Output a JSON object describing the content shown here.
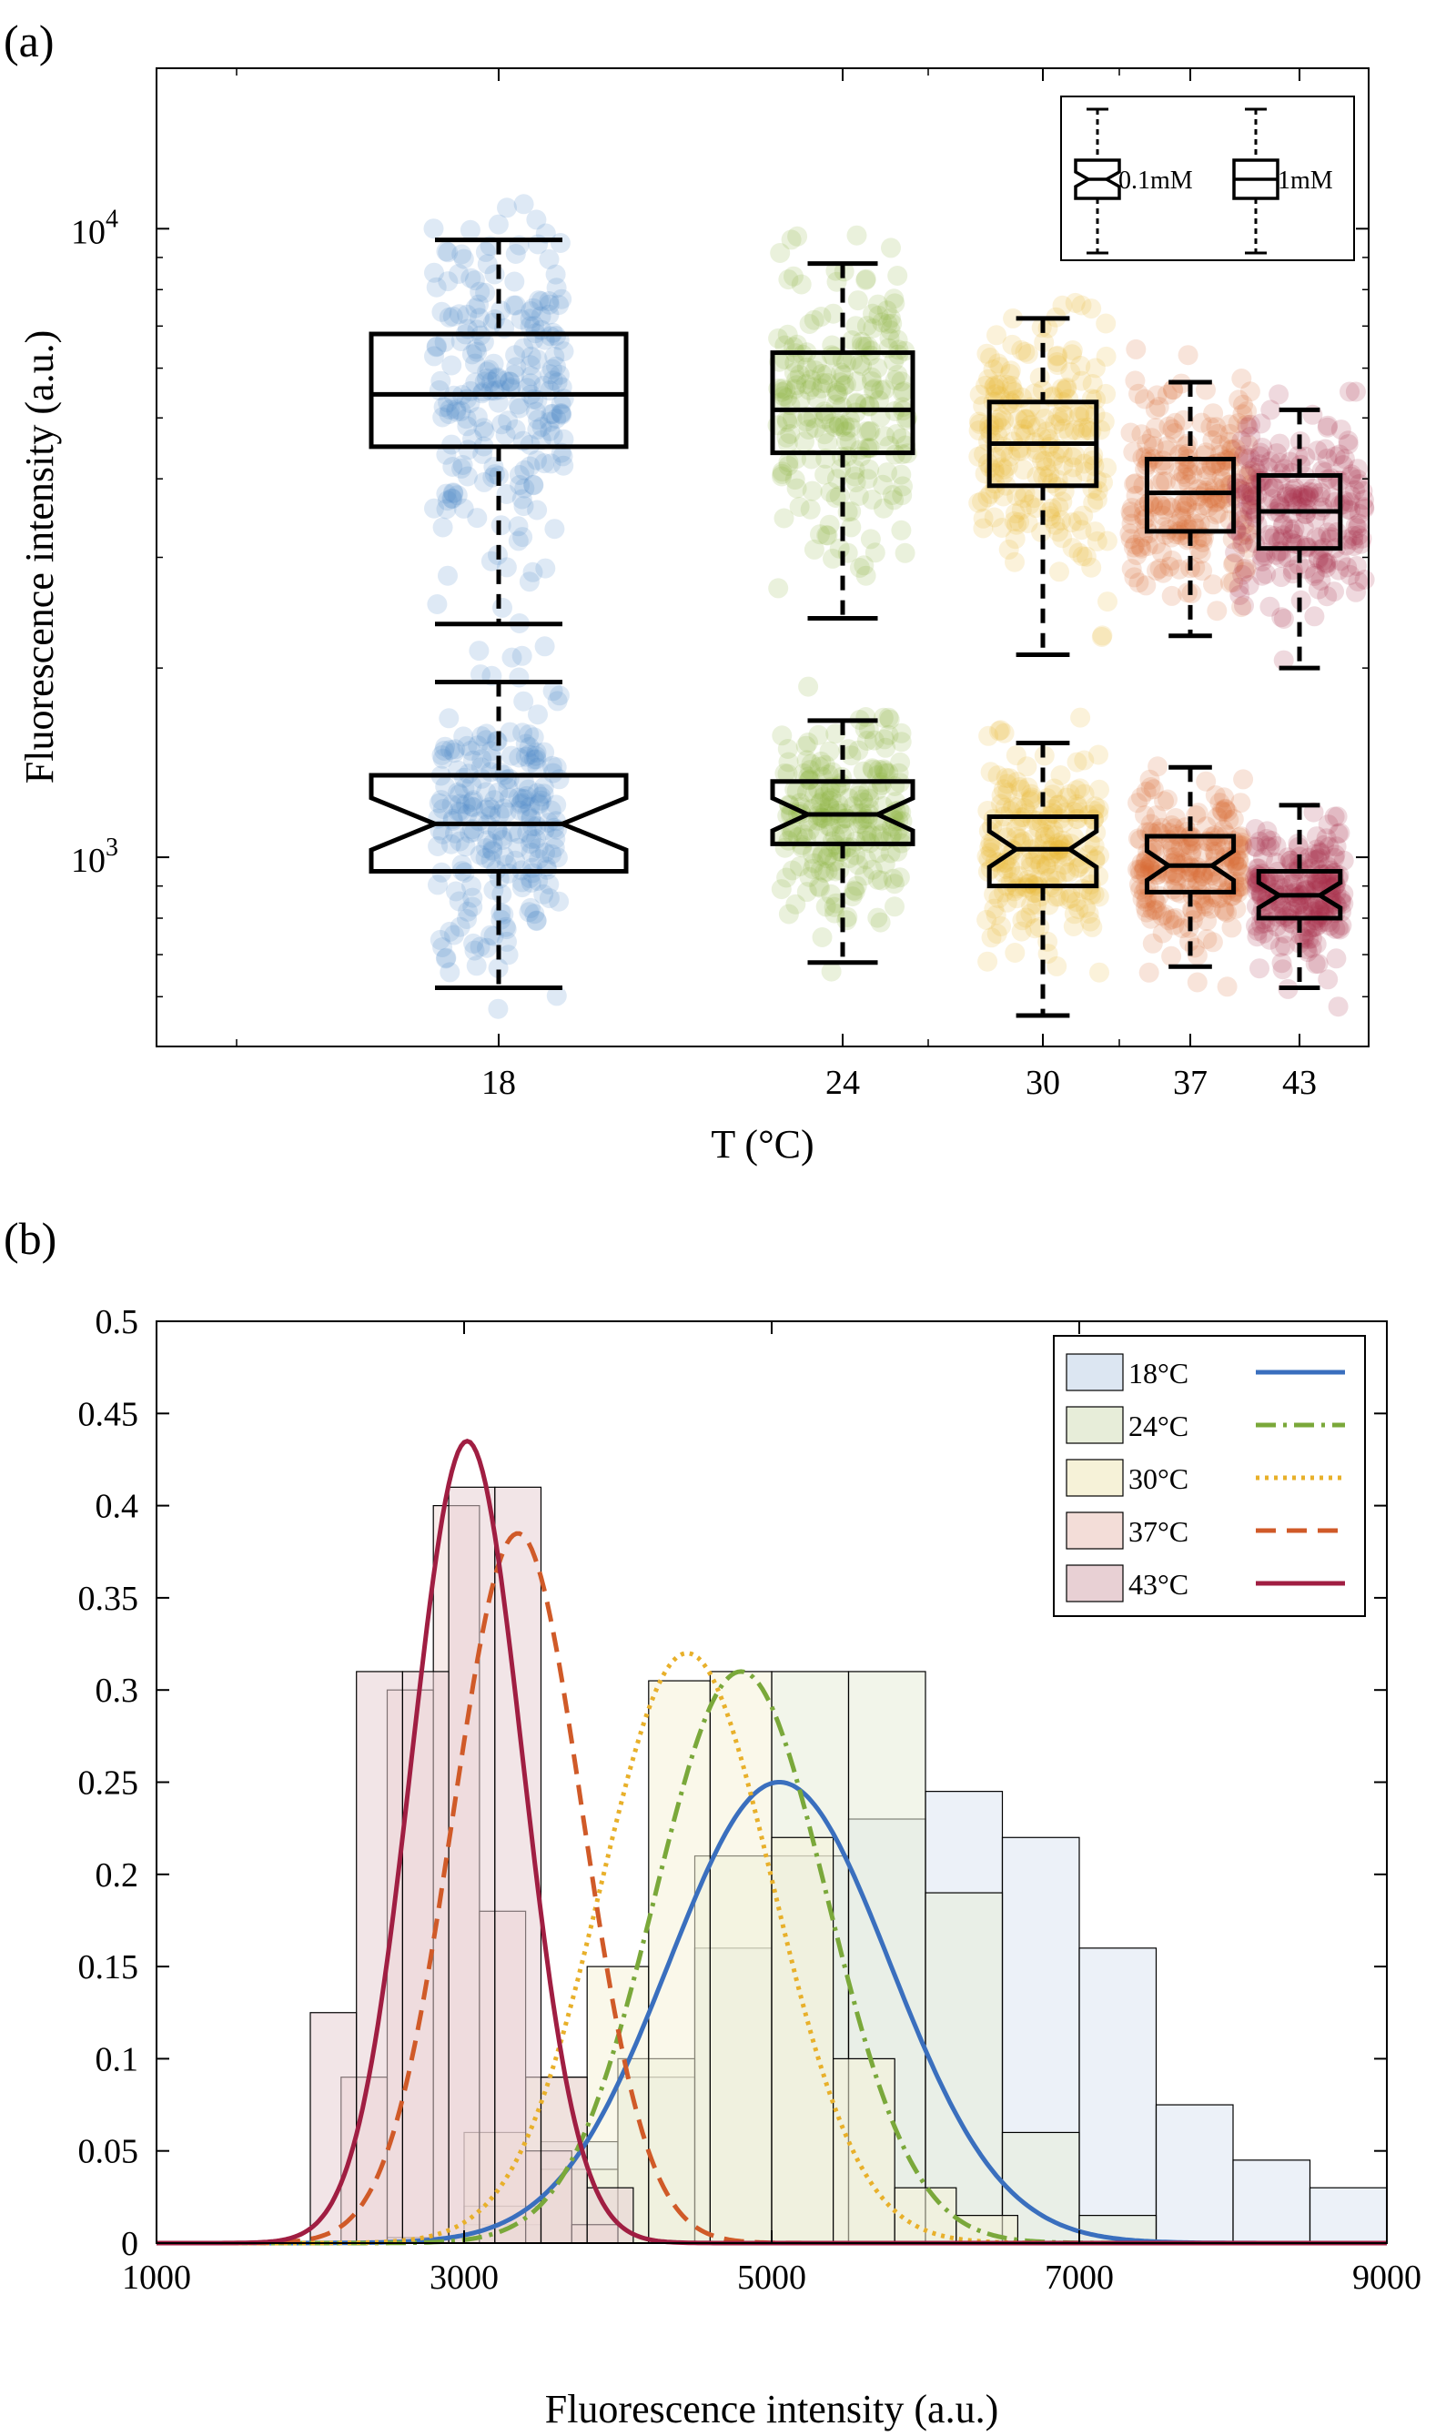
{
  "figure": {
    "panel_a_label": "(a)",
    "panel_b_label": "(b)"
  },
  "chart_data": [
    {
      "type": "box",
      "xlabel": "T (°C)",
      "ylabel": "Fluorescence intensity (a.u.)",
      "yscale": "log",
      "ylim": [
        500,
        18000
      ],
      "y_ticks": [
        {
          "base": "10",
          "exp": "3",
          "value": 1000
        },
        {
          "base": "10",
          "exp": "4",
          "value": 10000
        }
      ],
      "categories": [
        "18",
        "24",
        "30",
        "37",
        "43"
      ],
      "colors": [
        "#4a86c8",
        "#8cb43c",
        "#e8b832",
        "#d86a30",
        "#a82a48"
      ],
      "box_width_scale": [
        1.0,
        0.55,
        0.42,
        0.34,
        0.32
      ],
      "legend": [
        "0.1mM",
        "1mM"
      ],
      "series": [
        {
          "name": "1mM",
          "notched": false,
          "stats": [
            {
              "whisker_low": 2350,
              "q1": 4500,
              "median": 5450,
              "q3": 6800,
              "whisker_high": 9600
            },
            {
              "whisker_low": 2400,
              "q1": 4400,
              "median": 5150,
              "q3": 6350,
              "whisker_high": 8800
            },
            {
              "whisker_low": 2100,
              "q1": 3900,
              "median": 4550,
              "q3": 5300,
              "whisker_high": 7200
            },
            {
              "whisker_low": 2250,
              "q1": 3300,
              "median": 3800,
              "q3": 4300,
              "whisker_high": 5700
            },
            {
              "whisker_low": 2000,
              "q1": 3100,
              "median": 3550,
              "q3": 4050,
              "whisker_high": 5150
            }
          ],
          "scatter_spread": [
            0.32,
            0.32,
            0.32,
            0.3,
            0.32
          ]
        },
        {
          "name": "0.1mM",
          "notched": true,
          "stats": [
            {
              "whisker_low": 620,
              "q1": 950,
              "median": 1130,
              "q3": 1350,
              "whisker_high": 1900
            },
            {
              "whisker_low": 680,
              "q1": 1050,
              "median": 1170,
              "q3": 1320,
              "whisker_high": 1650
            },
            {
              "whisker_low": 560,
              "q1": 900,
              "median": 1030,
              "q3": 1160,
              "whisker_high": 1520
            },
            {
              "whisker_low": 670,
              "q1": 880,
              "median": 970,
              "q3": 1080,
              "whisker_high": 1390
            },
            {
              "whisker_low": 620,
              "q1": 800,
              "median": 870,
              "q3": 950,
              "whisker_high": 1210
            }
          ],
          "scatter_spread": [
            0.3,
            0.3,
            0.28,
            0.26,
            0.22
          ]
        }
      ]
    },
    {
      "type": "histogram",
      "xlabel": "Fluorescence intensity (a.u.)",
      "ylabel": "",
      "xlim": [
        1000,
        9000
      ],
      "ylim": [
        0,
        0.5
      ],
      "x_ticks": [
        "1000",
        "3000",
        "5000",
        "7000",
        "9000"
      ],
      "y_ticks": [
        "0",
        "0.05",
        "0.1",
        "0.15",
        "0.2",
        "0.25",
        "0.3",
        "0.35",
        "0.4",
        "0.45",
        "0.5"
      ],
      "legend": [
        "18°C",
        "24°C",
        "30°C",
        "37°C",
        "43°C"
      ],
      "series": [
        {
          "name": "18°C",
          "color": "#3a6fbe",
          "fill": "#dce6f2",
          "dash": "none",
          "bin_start": 2500,
          "bin_width": 500,
          "values": [
            0.003,
            0.01,
            0.055,
            0.09,
            0.16,
            0.21,
            0.23,
            0.245,
            0.22,
            0.16,
            0.075,
            0.045,
            0.03
          ],
          "fit_peak": 0.25,
          "fit_mean": 5050,
          "fit_sd": 720
        },
        {
          "name": "24°C",
          "color": "#7aa83a",
          "fill": "#e7edd9",
          "dash": "22 8 4 8",
          "bin_start": 3000,
          "bin_width": 500,
          "values": [
            0.02,
            0.04,
            0.1,
            0.21,
            0.31,
            0.31,
            0.19,
            0.06,
            0.015
          ],
          "fit_peak": 0.31,
          "fit_mean": 4800,
          "fit_sd": 560
        },
        {
          "name": "30°C",
          "color": "#e8b02a",
          "fill": "#f6f2d8",
          "dash": "4 6",
          "bin_start": 3000,
          "bin_width": 400,
          "values": [
            0.06,
            0.09,
            0.15,
            0.305,
            0.31,
            0.22,
            0.1,
            0.03,
            0.015
          ],
          "fit_peak": 0.32,
          "fit_mean": 4450,
          "fit_sd": 560
        },
        {
          "name": "37°C",
          "color": "#d05a28",
          "fill": "#f3ddd8",
          "dash": "22 12",
          "bin_start": 2200,
          "bin_width": 300,
          "values": [
            0.09,
            0.3,
            0.4,
            0.18,
            0.05,
            0.01
          ],
          "fit_peak": 0.385,
          "fit_mean": 3350,
          "fit_sd": 420
        },
        {
          "name": "43°C",
          "color": "#a01e42",
          "fill": "#e8d0d4",
          "dash": "none",
          "bin_start": 2000,
          "bin_width": 300,
          "values": [
            0.125,
            0.31,
            0.31,
            0.41,
            0.41,
            0.09,
            0.03
          ],
          "fit_peak": 0.435,
          "fit_mean": 3020,
          "fit_sd": 360
        }
      ]
    }
  ]
}
